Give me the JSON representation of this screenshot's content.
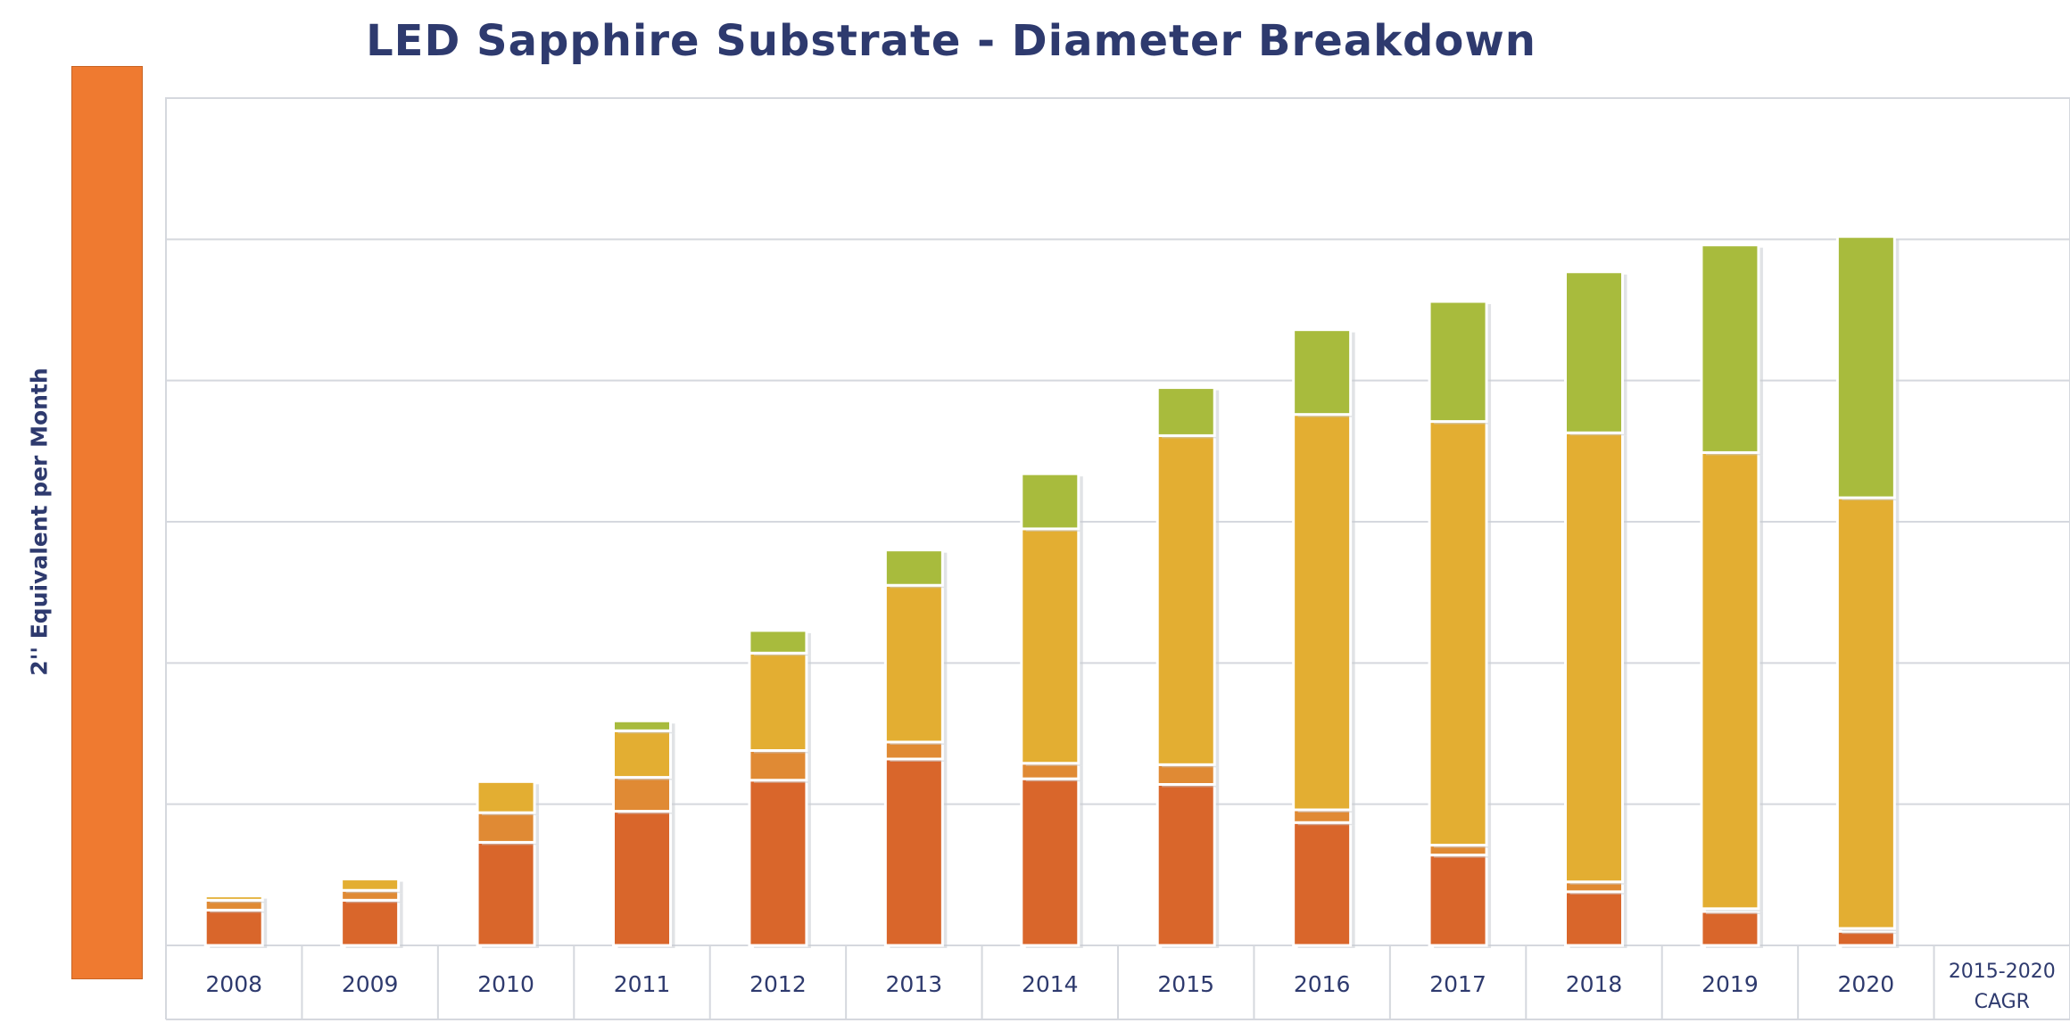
{
  "chart_data": {
    "type": "bar",
    "stacked": true,
    "title": "LED Sapphire Substrate  - Diameter Breakdown",
    "ylabel": "2'' Equivalent per Month",
    "categories": [
      "2008",
      "2009",
      "2010",
      "2011",
      "2012",
      "2013",
      "2014",
      "2015",
      "2016",
      "2017",
      "2018",
      "2019",
      "2020"
    ],
    "extra_column": [
      "2015-2020",
      "CAGR"
    ],
    "ylim": [
      0,
      6
    ],
    "grid": true,
    "colors": [
      "#d9662b",
      "#e08a34",
      "#e3ae32",
      "#a8bb3d"
    ],
    "series": [
      {
        "values": [
          0.25,
          0.32,
          0.73,
          0.95,
          1.17,
          1.32,
          1.18,
          1.14,
          0.87,
          0.64,
          0.38,
          0.24,
          0.1
        ]
      },
      {
        "values": [
          0.07,
          0.07,
          0.21,
          0.24,
          0.21,
          0.12,
          0.11,
          0.14,
          0.09,
          0.07,
          0.07,
          0.02,
          0.02
        ]
      },
      {
        "values": [
          0.03,
          0.08,
          0.22,
          0.33,
          0.69,
          1.11,
          1.66,
          2.33,
          2.8,
          3.0,
          3.18,
          3.23,
          3.05
        ]
      },
      {
        "values": [
          0.0,
          0.0,
          0.0,
          0.07,
          0.16,
          0.25,
          0.39,
          0.34,
          0.6,
          0.85,
          1.14,
          1.47,
          1.85
        ]
      }
    ]
  }
}
